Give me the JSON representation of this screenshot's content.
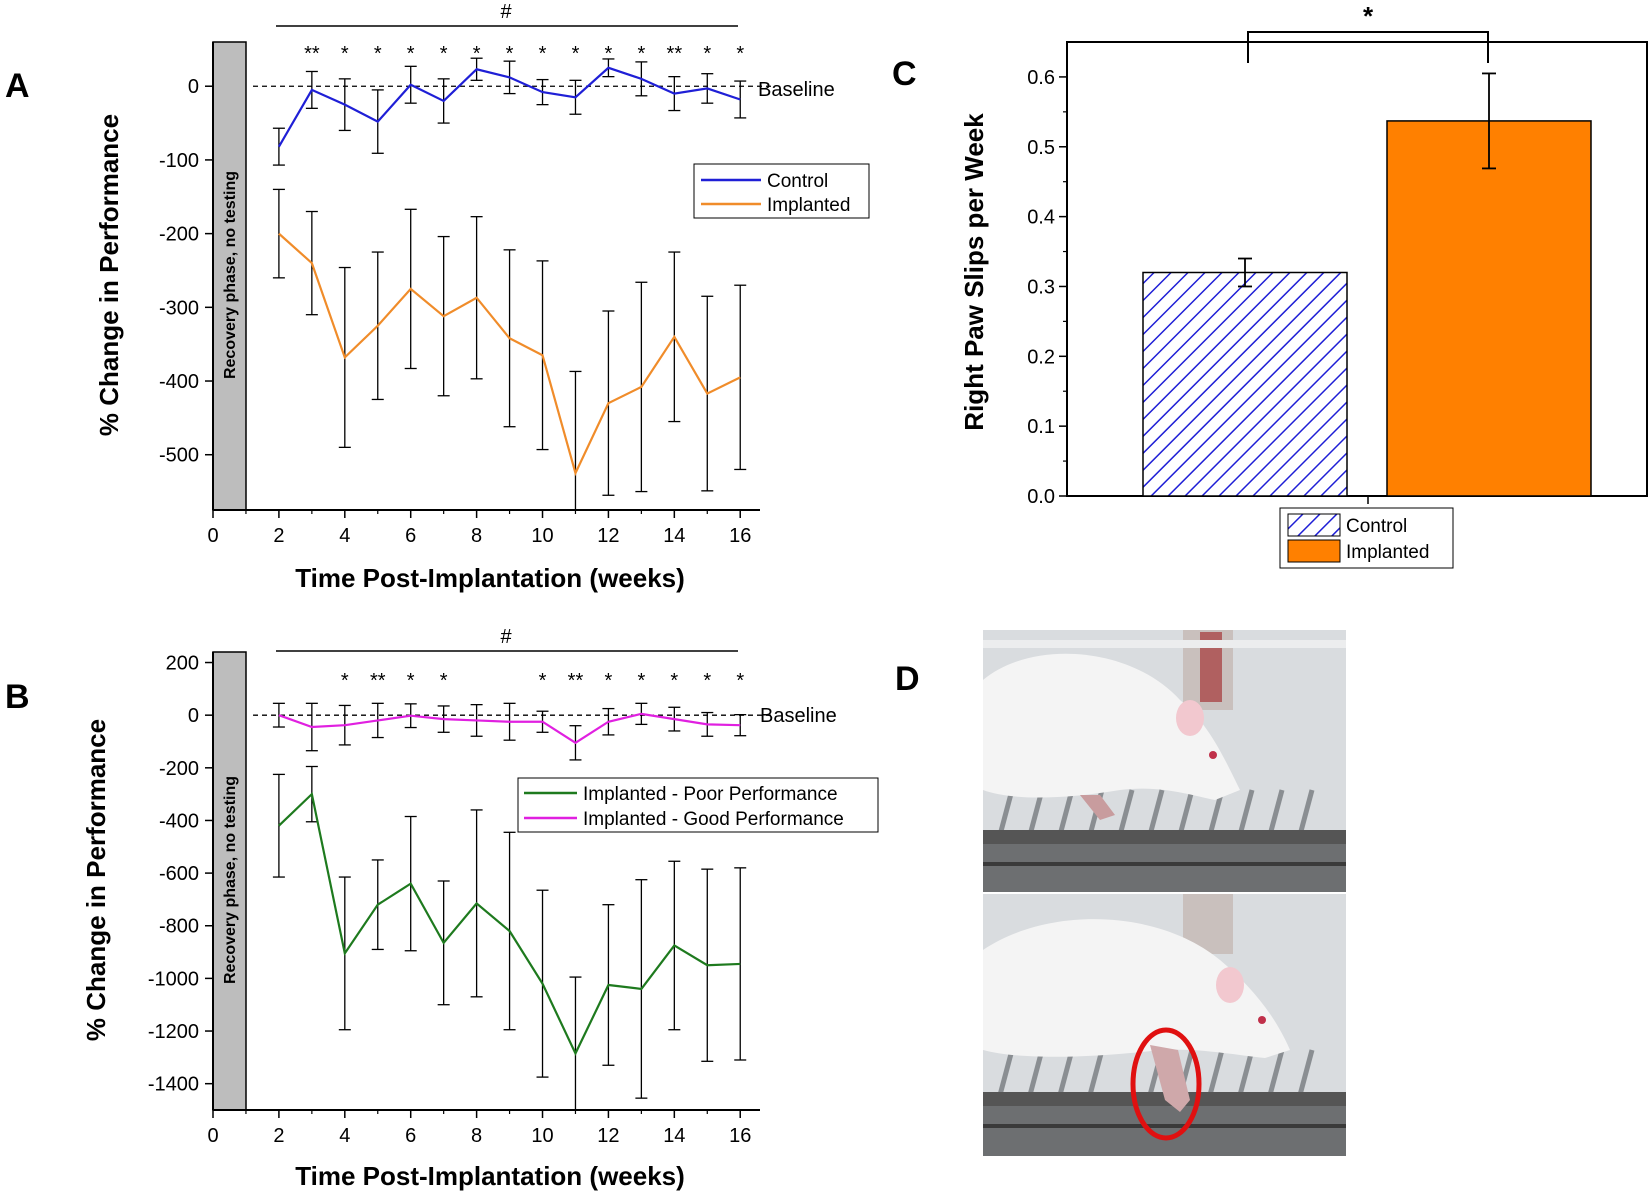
{
  "chart_data": [
    {
      "panel": "A",
      "type": "line",
      "xlabel": "Time Post-Implantation (weeks)",
      "ylabel": "% Change in Performance",
      "xlim": [
        0,
        16.6
      ],
      "ylim": [
        -575,
        60
      ],
      "xticks": [
        0,
        2,
        4,
        6,
        8,
        10,
        12,
        14,
        16
      ],
      "yticks": [
        0,
        -100,
        -200,
        -300,
        -400,
        -500
      ],
      "x": [
        2,
        3,
        4,
        5,
        6,
        7,
        8,
        9,
        10,
        11,
        12,
        13,
        14,
        15,
        16
      ],
      "series": [
        {
          "name": "Control",
          "color": "#1f1fd6",
          "values": [
            -82,
            -5,
            -25,
            -48,
            2,
            -20,
            23,
            12,
            -8,
            -15,
            25,
            10,
            -10,
            -3,
            -18
          ],
          "errors": [
            25,
            25,
            35,
            43,
            25,
            30,
            15,
            22,
            17,
            23,
            12,
            23,
            23,
            20,
            25
          ]
        },
        {
          "name": "Implanted",
          "color": "#f08c2a",
          "values": [
            -200,
            -240,
            -368,
            -325,
            -275,
            -312,
            -287,
            -342,
            -365,
            -525,
            -430,
            -408,
            -340,
            -417,
            -395
          ],
          "errors": [
            60,
            70,
            122,
            100,
            108,
            108,
            110,
            120,
            128,
            138,
            125,
            142,
            115,
            132,
            125
          ]
        }
      ],
      "significance": [
        "**",
        "*",
        "*",
        "*",
        "*",
        "*",
        "*",
        "*",
        "*",
        "*",
        "*",
        "**",
        "*",
        "*"
      ],
      "significance_weeks": [
        3,
        4,
        5,
        6,
        7,
        8,
        9,
        10,
        11,
        12,
        13,
        14,
        15,
        16
      ],
      "hash": "#",
      "baseline_label": "Baseline",
      "recovery_label": "Recovery phase, no testing"
    },
    {
      "panel": "B",
      "type": "line",
      "xlabel": "Time Post-Implantation (weeks)",
      "ylabel": "% Change in Performance",
      "xlim": [
        0,
        16.6
      ],
      "ylim": [
        -1500,
        240
      ],
      "xticks": [
        0,
        2,
        4,
        6,
        8,
        10,
        12,
        14,
        16
      ],
      "yticks": [
        200,
        0,
        -200,
        -400,
        -600,
        -800,
        -1000,
        -1200,
        -1400
      ],
      "x": [
        2,
        3,
        4,
        5,
        6,
        7,
        8,
        9,
        10,
        11,
        12,
        13,
        14,
        15,
        16
      ],
      "series": [
        {
          "name": "Implanted - Poor Performance",
          "color": "#1e7a1e",
          "values": [
            -420,
            -300,
            -905,
            -720,
            -640,
            -865,
            -715,
            -820,
            -1020,
            -1285,
            -1025,
            -1040,
            -875,
            -950,
            -945
          ],
          "errors": [
            195,
            105,
            290,
            170,
            255,
            235,
            355,
            375,
            355,
            290,
            305,
            415,
            320,
            365,
            365
          ]
        },
        {
          "name": "Implanted - Good Performance",
          "color": "#e020e0",
          "values": [
            0,
            -45,
            -38,
            -20,
            -2,
            -15,
            -20,
            -25,
            -25,
            -105,
            -25,
            5,
            -15,
            -35,
            -38
          ],
          "errors": [
            45,
            90,
            75,
            65,
            45,
            50,
            60,
            70,
            40,
            65,
            50,
            40,
            45,
            45,
            40
          ]
        }
      ],
      "significance": [
        "*",
        "**",
        "*",
        "*",
        "*",
        "**",
        "*",
        "*",
        "*",
        "*",
        "*"
      ],
      "significance_weeks": [
        4,
        5,
        6,
        7,
        10,
        11,
        12,
        13,
        14,
        15,
        16
      ],
      "hash": "#",
      "baseline_label": "Baseline",
      "recovery_label": "Recovery phase, no testing"
    },
    {
      "panel": "C",
      "type": "bar",
      "ylabel": "Right Paw Slips per Week",
      "ylim": [
        0,
        0.65
      ],
      "yticks": [
        "0.0",
        "0.1",
        "0.2",
        "0.3",
        "0.4",
        "0.5",
        "0.6"
      ],
      "categories": [
        "Control",
        "Implanted"
      ],
      "values": [
        0.32,
        0.537
      ],
      "errors": [
        0.02,
        0.068
      ],
      "colors": [
        "#1f1fd6",
        "#ff8000"
      ],
      "significance": "*"
    }
  ],
  "panel_d": {
    "letter": "D",
    "image_1": "rat-crossing-ladder-photo",
    "image_2": "rat-paw-slip-photo",
    "highlight": "red-circle-icon"
  }
}
